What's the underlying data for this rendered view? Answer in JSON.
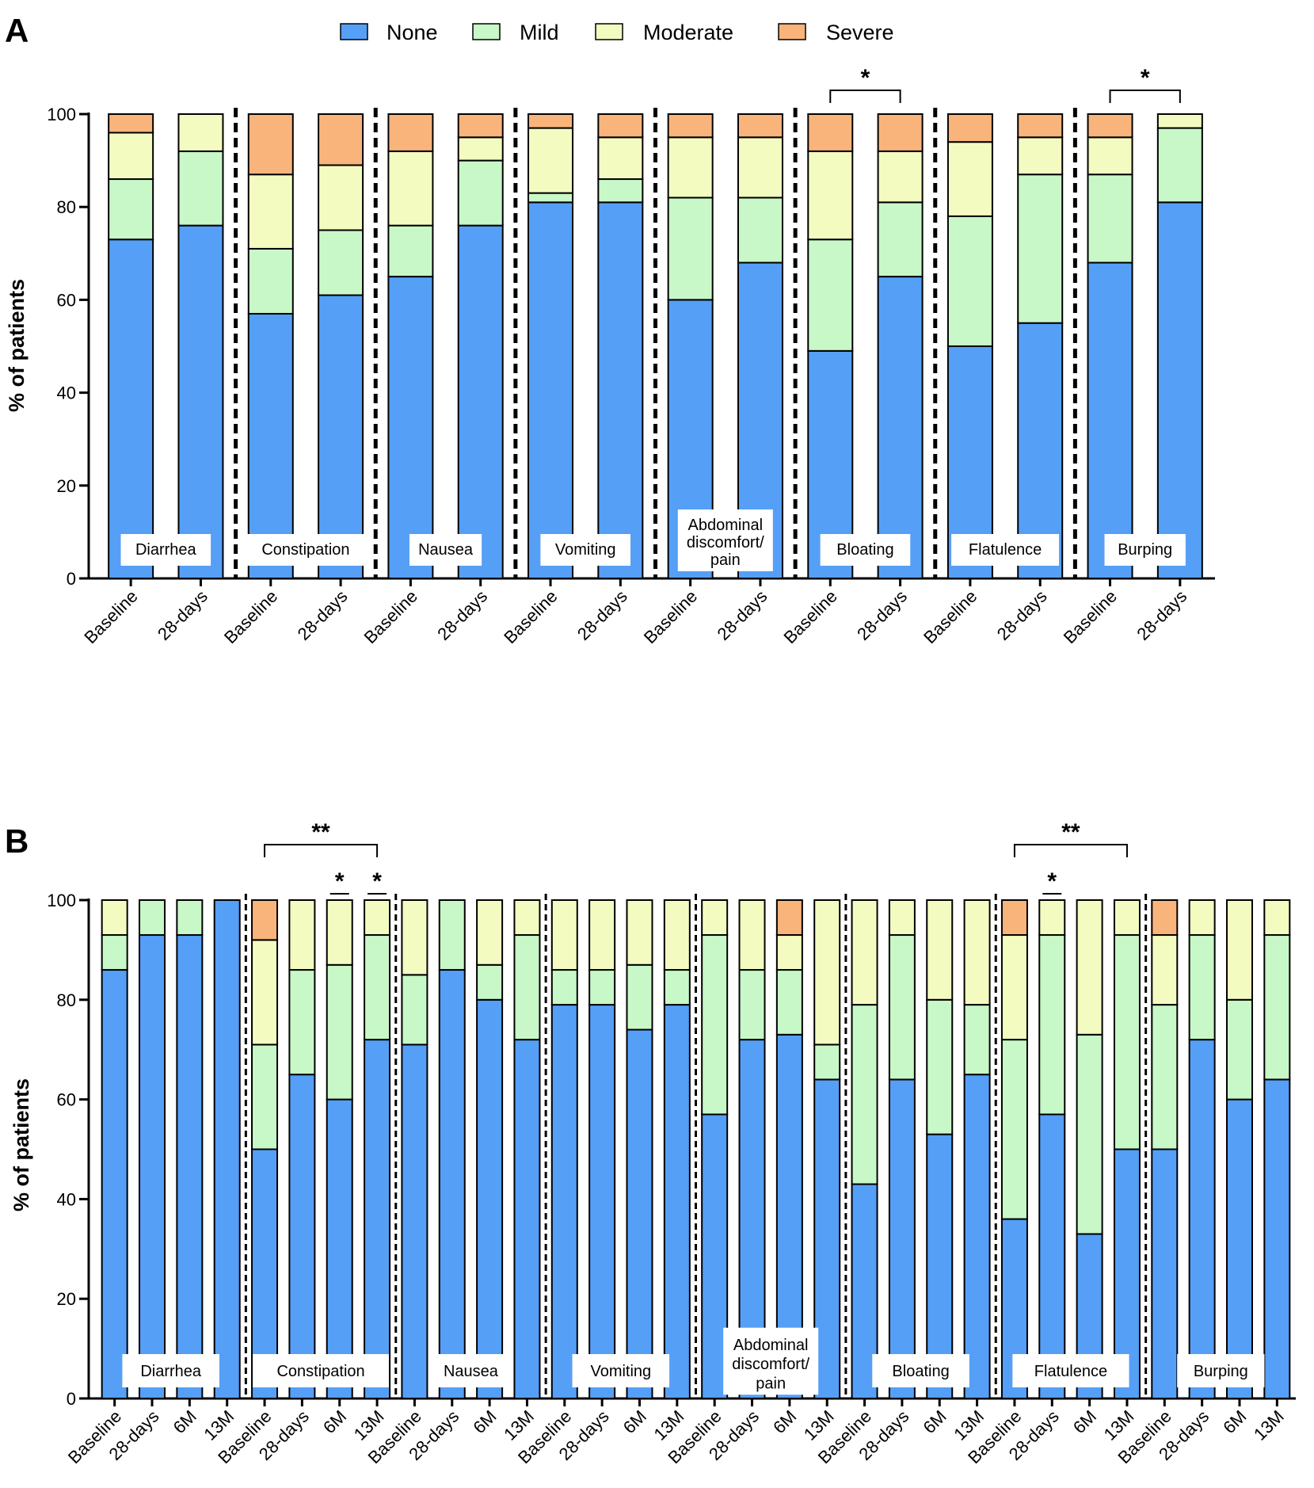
{
  "chart_data": [
    {
      "panel": "A",
      "type": "bar",
      "stacked": true,
      "ylabel": "% of patients",
      "ylim": [
        0,
        100
      ],
      "yticks": [
        0,
        20,
        40,
        60,
        80,
        100
      ],
      "legend": [
        "None",
        "Mild",
        "Moderate",
        "Severe"
      ],
      "timepoints": [
        "Baseline",
        "28-days"
      ],
      "groups": [
        {
          "label": "Diarrhea",
          "bars": [
            [
              73,
              13,
              10,
              4
            ],
            [
              76,
              16,
              8,
              0
            ]
          ]
        },
        {
          "label": "Constipation",
          "bars": [
            [
              57,
              14,
              16,
              13
            ],
            [
              61,
              14,
              14,
              11
            ]
          ]
        },
        {
          "label": "Nausea",
          "bars": [
            [
              65,
              11,
              16,
              8
            ],
            [
              76,
              14,
              5,
              5
            ]
          ]
        },
        {
          "label": "Vomiting",
          "bars": [
            [
              81,
              2,
              14,
              3
            ],
            [
              81,
              5,
              9,
              5
            ]
          ]
        },
        {
          "label": "Abdominal discomfort/ pain",
          "label_lines": [
            "Abdominal",
            "discomfort/",
            "pain"
          ],
          "bars": [
            [
              60,
              22,
              13,
              5
            ],
            [
              68,
              14,
              13,
              5
            ]
          ]
        },
        {
          "label": "Bloating",
          "bars": [
            [
              49,
              24,
              19,
              8
            ],
            [
              65,
              16,
              11,
              8
            ]
          ]
        },
        {
          "label": "Flatulence",
          "bars": [
            [
              50,
              28,
              16,
              6
            ],
            [
              55,
              32,
              8,
              5
            ]
          ]
        },
        {
          "label": "Burping",
          "bars": [
            [
              68,
              19,
              8,
              5
            ],
            [
              81,
              16,
              3,
              0
            ]
          ]
        }
      ],
      "significance": [
        {
          "group": "Bloating",
          "from": 0,
          "to": 1,
          "label": "*"
        },
        {
          "group": "Burping",
          "from": 0,
          "to": 1,
          "label": "*"
        }
      ]
    },
    {
      "panel": "B",
      "type": "bar",
      "stacked": true,
      "ylabel": "% of patients",
      "ylim": [
        0,
        100
      ],
      "yticks": [
        0,
        20,
        40,
        60,
        80,
        100
      ],
      "timepoints": [
        "Baseline",
        "28-days",
        "6M",
        "13M"
      ],
      "groups": [
        {
          "label": "Diarrhea",
          "bars": [
            [
              86,
              7,
              7,
              0
            ],
            [
              93,
              7,
              0,
              0
            ],
            [
              93,
              7,
              0,
              0
            ],
            [
              100,
              0,
              0,
              0
            ]
          ]
        },
        {
          "label": "Constipation",
          "bars": [
            [
              50,
              21,
              21,
              8
            ],
            [
              65,
              21,
              14,
              0
            ],
            [
              60,
              27,
              13,
              0
            ],
            [
              72,
              21,
              7,
              0
            ]
          ]
        },
        {
          "label": "Nausea",
          "bars": [
            [
              71,
              14,
              15,
              0
            ],
            [
              86,
              14,
              0,
              0
            ],
            [
              80,
              7,
              13,
              0
            ],
            [
              72,
              21,
              7,
              0
            ]
          ]
        },
        {
          "label": "Vomiting",
          "bars": [
            [
              79,
              7,
              14,
              0
            ],
            [
              79,
              7,
              14,
              0
            ],
            [
              74,
              13,
              13,
              0
            ],
            [
              79,
              7,
              14,
              0
            ]
          ]
        },
        {
          "label": "Abdominal discomfort/ pain",
          "label_lines": [
            "Abdominal",
            "discomfort/",
            "pain"
          ],
          "bars": [
            [
              57,
              36,
              7,
              0
            ],
            [
              72,
              14,
              14,
              0
            ],
            [
              73,
              13,
              7,
              7
            ],
            [
              64,
              7,
              29,
              0
            ]
          ]
        },
        {
          "label": "Bloating",
          "bars": [
            [
              43,
              36,
              21,
              0
            ],
            [
              64,
              29,
              7,
              0
            ],
            [
              53,
              27,
              20,
              0
            ],
            [
              65,
              14,
              21,
              0
            ]
          ]
        },
        {
          "label": "Flatulence",
          "bars": [
            [
              36,
              36,
              21,
              7
            ],
            [
              57,
              36,
              7,
              0
            ],
            [
              33,
              40,
              27,
              0
            ],
            [
              50,
              43,
              7,
              0
            ]
          ]
        },
        {
          "label": "Burping",
          "bars": [
            [
              50,
              29,
              14,
              7
            ],
            [
              72,
              21,
              7,
              0
            ],
            [
              60,
              20,
              20,
              0
            ],
            [
              64,
              29,
              7,
              0
            ]
          ]
        }
      ],
      "significance": [
        {
          "group": "Constipation",
          "from": 0,
          "to": 3,
          "label": "**"
        },
        {
          "group": "Constipation",
          "at": 2,
          "label": "*"
        },
        {
          "group": "Constipation",
          "at": 3,
          "label": "*"
        },
        {
          "group": "Flatulence",
          "from": 0,
          "to": 3,
          "label": "**"
        },
        {
          "group": "Flatulence",
          "at": 1,
          "label": "*"
        }
      ]
    }
  ],
  "colors": {
    "None": "#559ff7",
    "Mild": "#c8f7c8",
    "Moderate": "#f4fbc0",
    "Severe": "#f9b47c",
    "outline": "#000000"
  }
}
